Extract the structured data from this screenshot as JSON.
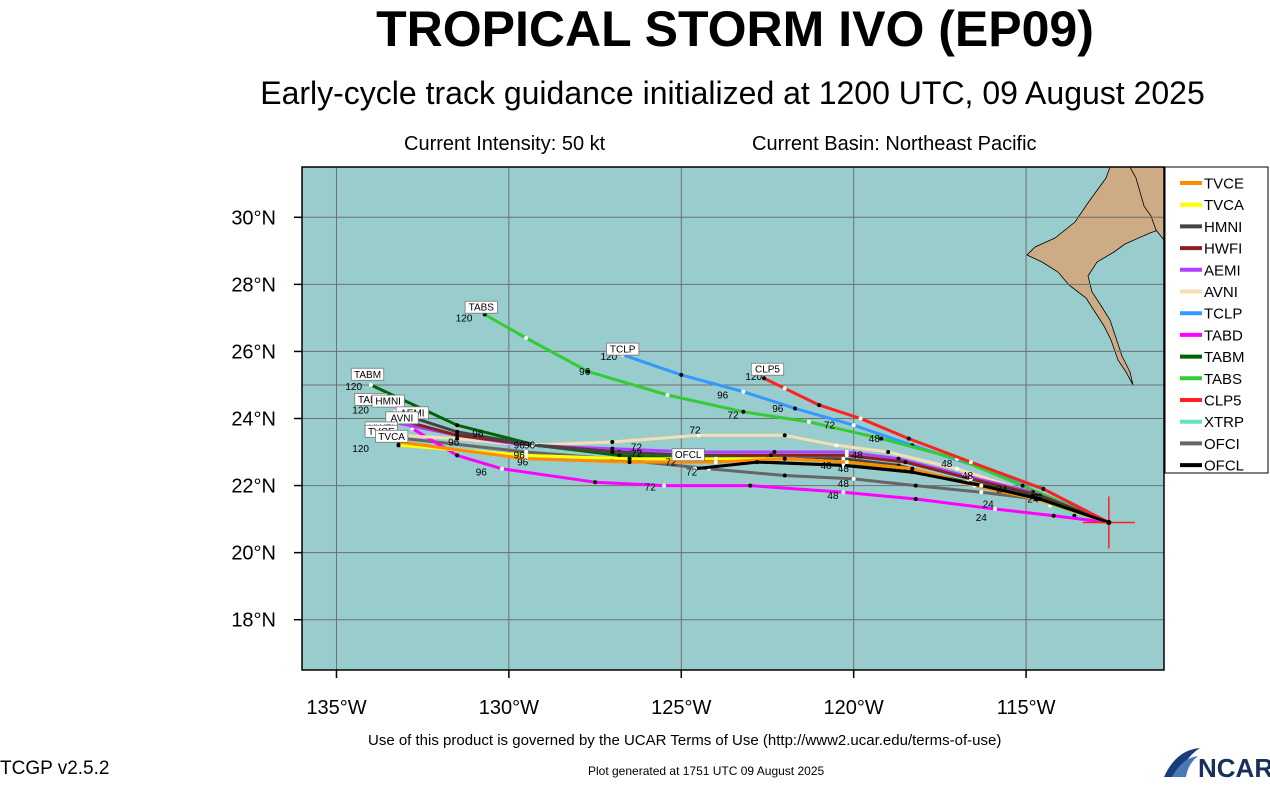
{
  "header": {
    "title": "TROPICAL STORM IVO (EP09)",
    "subtitle": "Early-cycle track guidance initialized at 1200 UTC, 09 August 2025",
    "current_intensity": "Current Intensity: 50 kt",
    "current_basin": "Current Basin: Northeast Pacific"
  },
  "footer": {
    "terms": "Use of this product is governed by the UCAR Terms of Use (http://www2.ucar.edu/terms-of-use)",
    "generated": "Plot generated at 1751 UTC   09 August 2025",
    "version": "TCGP v2.5.2",
    "logo_text": "NCAR"
  },
  "colors": {
    "ocean": "#99cdcd",
    "land": "#cdab85",
    "grid": "#6f6f6f",
    "current_position": "#ff2020"
  },
  "chart_data": {
    "type": "map",
    "lon_range": [
      -136,
      -111
    ],
    "lat_range": [
      16.5,
      31.5
    ],
    "lon_ticks": [
      -135,
      -130,
      -125,
      -120,
      -115
    ],
    "lon_tick_labels": [
      "135°W",
      "130°W",
      "125°W",
      "120°W",
      "115°W"
    ],
    "lat_ticks": [
      30,
      28,
      26,
      24,
      22,
      20,
      18
    ],
    "lat_tick_labels": [
      "30°N",
      "28°N",
      "26°N",
      "24°N",
      "22°N",
      "20°N",
      "18°N"
    ],
    "current_position": {
      "lon": -112.6,
      "lat": 20.9
    },
    "legend_placement": "right",
    "hour_labels": [
      "24",
      "48",
      "72",
      "96",
      "120"
    ],
    "models": [
      {
        "name": "TVCE",
        "color": "#ff8c00",
        "track": [
          [
            -112.6,
            20.9
          ],
          [
            -114.7,
            21.6
          ],
          [
            -116.5,
            22.0
          ],
          [
            -118.3,
            22.5
          ],
          [
            -120.2,
            22.7
          ],
          [
            -122.0,
            22.8
          ],
          [
            -124.0,
            22.7
          ],
          [
            -126.5,
            22.7
          ],
          [
            -129.5,
            22.8
          ],
          [
            -133.2,
            23.3
          ]
        ]
      },
      {
        "name": "TVCA",
        "color": "#ffff00",
        "track": [
          [
            -112.6,
            20.9
          ],
          [
            -114.7,
            21.6
          ],
          [
            -116.5,
            22.0
          ],
          [
            -118.3,
            22.5
          ],
          [
            -120.2,
            22.7
          ],
          [
            -122.0,
            22.8
          ],
          [
            -124.0,
            22.8
          ],
          [
            -126.5,
            22.8
          ],
          [
            -129.5,
            22.9
          ],
          [
            -133.2,
            23.2
          ]
        ]
      },
      {
        "name": "HMNI",
        "color": "#444444",
        "track": [
          [
            -112.6,
            20.9
          ],
          [
            -114.8,
            21.7
          ],
          [
            -116.8,
            22.1
          ],
          [
            -118.7,
            22.6
          ],
          [
            -120.3,
            22.8
          ],
          [
            -122.5,
            22.8
          ],
          [
            -125.0,
            22.9
          ],
          [
            -127.0,
            23.0
          ],
          [
            -129.3,
            23.2
          ],
          [
            -131.5,
            23.6
          ],
          [
            -133.3,
            24.2
          ]
        ]
      },
      {
        "name": "HWFI",
        "color": "#8b2020",
        "track": [
          [
            -112.6,
            20.9
          ],
          [
            -114.6,
            21.7
          ],
          [
            -116.6,
            22.2
          ],
          [
            -118.5,
            22.7
          ],
          [
            -120.2,
            22.9
          ],
          [
            -122.4,
            22.9
          ],
          [
            -124.8,
            22.9
          ],
          [
            -126.8,
            23.0
          ],
          [
            -129.2,
            23.2
          ],
          [
            -131.5,
            23.5
          ],
          [
            -133.3,
            24.0
          ]
        ]
      },
      {
        "name": "AEMI",
        "color": "#b040ff",
        "track": [
          [
            -112.6,
            20.9
          ],
          [
            -114.8,
            21.8
          ],
          [
            -116.8,
            22.3
          ],
          [
            -118.7,
            22.8
          ],
          [
            -120.2,
            23.0
          ],
          [
            -122.3,
            23.0
          ],
          [
            -124.7,
            23.0
          ],
          [
            -127.0,
            23.1
          ],
          [
            -129.5,
            23.2
          ],
          [
            -131.5,
            23.5
          ],
          [
            -133.4,
            23.9
          ]
        ]
      },
      {
        "name": "AVNI",
        "color": "#f5deb3",
        "track": [
          [
            -112.6,
            20.9
          ],
          [
            -114.9,
            21.8
          ],
          [
            -117.0,
            22.5
          ],
          [
            -119.0,
            23.0
          ],
          [
            -120.5,
            23.2
          ],
          [
            -122.0,
            23.5
          ],
          [
            -124.5,
            23.5
          ],
          [
            -127.0,
            23.3
          ],
          [
            -129.5,
            23.2
          ],
          [
            -131.5,
            23.4
          ],
          [
            -133.2,
            23.5
          ]
        ]
      },
      {
        "name": "TCLP",
        "color": "#3399ff",
        "track": [
          [
            -112.6,
            20.9
          ],
          [
            -114.5,
            21.9
          ],
          [
            -116.5,
            22.6
          ],
          [
            -118.3,
            23.2
          ],
          [
            -120.0,
            23.8
          ],
          [
            -121.7,
            24.3
          ],
          [
            -123.2,
            24.8
          ],
          [
            -125.0,
            25.3
          ],
          [
            -126.7,
            25.9
          ]
        ]
      },
      {
        "name": "TABD",
        "color": "#ff00ff",
        "track": [
          [
            -112.6,
            20.9
          ],
          [
            -114.2,
            21.1
          ],
          [
            -115.9,
            21.3
          ],
          [
            -118.2,
            21.6
          ],
          [
            -120.3,
            21.8
          ],
          [
            -123.0,
            22.0
          ],
          [
            -125.5,
            22.0
          ],
          [
            -127.5,
            22.1
          ],
          [
            -130.2,
            22.5
          ],
          [
            -131.5,
            22.9
          ],
          [
            -132.8,
            23.7
          ],
          [
            -133.2,
            24.2
          ]
        ]
      },
      {
        "name": "TABM",
        "color": "#006400",
        "track": [
          [
            -112.6,
            20.9
          ],
          [
            -114.7,
            21.7
          ],
          [
            -116.7,
            22.1
          ],
          [
            -118.5,
            22.5
          ],
          [
            -120.3,
            22.6
          ],
          [
            -122.5,
            22.7
          ],
          [
            -124.8,
            22.8
          ],
          [
            -126.8,
            22.9
          ],
          [
            -129.2,
            23.2
          ],
          [
            -131.5,
            23.8
          ],
          [
            -134.0,
            25.0
          ]
        ]
      },
      {
        "name": "TABS",
        "color": "#33cc33",
        "track": [
          [
            -112.6,
            20.9
          ],
          [
            -115.1,
            22.0
          ],
          [
            -117.0,
            22.8
          ],
          [
            -119.2,
            23.4
          ],
          [
            -121.3,
            23.9
          ],
          [
            -123.2,
            24.2
          ],
          [
            -125.4,
            24.7
          ],
          [
            -127.7,
            25.4
          ],
          [
            -129.5,
            26.4
          ],
          [
            -130.7,
            27.1
          ]
        ]
      },
      {
        "name": "CLP5",
        "color": "#ff2020",
        "track": [
          [
            -112.6,
            20.9
          ],
          [
            -114.5,
            21.9
          ],
          [
            -116.6,
            22.7
          ],
          [
            -118.4,
            23.4
          ],
          [
            -119.8,
            24.0
          ],
          [
            -121.0,
            24.4
          ],
          [
            -122.0,
            24.9
          ],
          [
            -122.6,
            25.2
          ]
        ]
      },
      {
        "name": "XTRP",
        "color": "#66e0c0",
        "track": [
          [
            -112.6,
            20.9
          ],
          [
            -113.6,
            21.1
          ],
          [
            -114.3,
            21.4
          ]
        ]
      },
      {
        "name": "OFCI",
        "color": "#666666",
        "track": [
          [
            -112.6,
            20.9
          ],
          [
            -114.7,
            21.6
          ],
          [
            -116.3,
            21.8
          ],
          [
            -118.2,
            22.0
          ],
          [
            -120.0,
            22.2
          ],
          [
            -122.0,
            22.3
          ],
          [
            -124.2,
            22.5
          ],
          [
            -127.0,
            22.8
          ],
          [
            -129.5,
            23.0
          ],
          [
            -133.0,
            23.4
          ]
        ]
      },
      {
        "name": "OFCL",
        "color": "#000000",
        "track": [
          [
            -112.6,
            20.9
          ],
          [
            -114.6,
            21.6
          ],
          [
            -116.3,
            22.0
          ],
          [
            -118.3,
            22.4
          ],
          [
            -120.3,
            22.6
          ],
          [
            -122.8,
            22.7
          ],
          [
            -124.6,
            22.5
          ]
        ]
      }
    ],
    "tags": [
      {
        "text": "TABS",
        "lon": -130.8,
        "lat": 27.2
      },
      {
        "text": "TCLP",
        "lon": -126.7,
        "lat": 25.95
      },
      {
        "text": "CLP5",
        "lon": -122.5,
        "lat": 25.35
      },
      {
        "text": "TABM",
        "lon": -134.1,
        "lat": 25.2
      },
      {
        "text": "TABD",
        "lon": -134.0,
        "lat": 24.45
      },
      {
        "text": "HMNI",
        "lon": -133.5,
        "lat": 24.4
      },
      {
        "text": "AEMI",
        "lon": -132.8,
        "lat": 24.05
      },
      {
        "text": "AVNI",
        "lon": -133.1,
        "lat": 23.9
      },
      {
        "text": "HWFI",
        "lon": -133.7,
        "lat": 23.6
      },
      {
        "text": "TVCE",
        "lon": -133.7,
        "lat": 23.5
      },
      {
        "text": "TVCA",
        "lon": -133.4,
        "lat": 23.35
      },
      {
        "text": "OFCL",
        "lon": -124.8,
        "lat": 22.8
      }
    ],
    "labels": [
      {
        "text": "120",
        "lon": -131.3,
        "lat": 26.9
      },
      {
        "text": "120",
        "lon": -127.1,
        "lat": 25.75
      },
      {
        "text": "120",
        "lon": -122.9,
        "lat": 25.15
      },
      {
        "text": "120",
        "lon": -134.5,
        "lat": 24.85
      },
      {
        "text": "120",
        "lon": -134.3,
        "lat": 24.15
      },
      {
        "text": "120",
        "lon": -134.3,
        "lat": 23.0
      },
      {
        "text": "96",
        "lon": -127.8,
        "lat": 25.3
      },
      {
        "text": "96",
        "lon": -123.8,
        "lat": 24.6
      },
      {
        "text": "96",
        "lon": -122.2,
        "lat": 24.2
      },
      {
        "text": "96",
        "lon": -130.9,
        "lat": 23.45
      },
      {
        "text": "96",
        "lon": -131.6,
        "lat": 23.2
      },
      {
        "text": "96",
        "lon": -129.7,
        "lat": 23.1
      },
      {
        "text": "96",
        "lon": -129.4,
        "lat": 23.1
      },
      {
        "text": "96",
        "lon": -129.7,
        "lat": 22.8
      },
      {
        "text": "96",
        "lon": -129.6,
        "lat": 22.6
      },
      {
        "text": "96",
        "lon": -130.8,
        "lat": 22.3
      },
      {
        "text": "72",
        "lon": -124.6,
        "lat": 23.55
      },
      {
        "text": "72",
        "lon": -123.5,
        "lat": 24.0
      },
      {
        "text": "72",
        "lon": -120.7,
        "lat": 23.7
      },
      {
        "text": "72",
        "lon": -126.3,
        "lat": 23.05
      },
      {
        "text": "72",
        "lon": -126.3,
        "lat": 22.85
      },
      {
        "text": "72",
        "lon": -125.3,
        "lat": 22.6
      },
      {
        "text": "72",
        "lon": -124.7,
        "lat": 22.3
      },
      {
        "text": "72",
        "lon": -125.9,
        "lat": 21.85
      },
      {
        "text": "48",
        "lon": -119.4,
        "lat": 23.3
      },
      {
        "text": "48",
        "lon": -117.3,
        "lat": 22.55
      },
      {
        "text": "48",
        "lon": -116.7,
        "lat": 22.2
      },
      {
        "text": "48",
        "lon": -119.9,
        "lat": 22.8
      },
      {
        "text": "48",
        "lon": -120.8,
        "lat": 22.5
      },
      {
        "text": "48",
        "lon": -120.3,
        "lat": 22.4
      },
      {
        "text": "48",
        "lon": -120.3,
        "lat": 21.95
      },
      {
        "text": "48",
        "lon": -120.6,
        "lat": 21.6
      },
      {
        "text": "24",
        "lon": -115.7,
        "lat": 21.8
      },
      {
        "text": "24",
        "lon": -114.8,
        "lat": 21.5
      },
      {
        "text": "24",
        "lon": -116.1,
        "lat": 21.35
      },
      {
        "text": "24",
        "lon": -116.3,
        "lat": 20.95
      }
    ]
  }
}
